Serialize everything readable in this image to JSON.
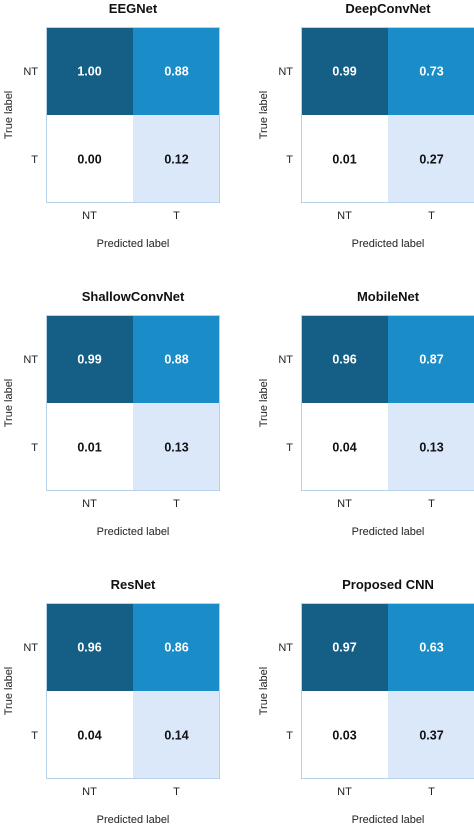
{
  "chart_data": [
    {
      "type": "heatmap",
      "title": "EEGNet",
      "xlabel": "Predicted label",
      "ylabel": "True label",
      "x_categories": [
        "NT",
        "T"
      ],
      "y_categories": [
        "NT",
        "T"
      ],
      "values": [
        [
          1.0,
          0.88
        ],
        [
          0.0,
          0.12
        ]
      ],
      "value_labels": [
        [
          "1.00",
          "0.88"
        ],
        [
          "0.00",
          "0.12"
        ]
      ]
    },
    {
      "type": "heatmap",
      "title": "DeepConvNet",
      "xlabel": "Predicted label",
      "ylabel": "True label",
      "x_categories": [
        "NT",
        "T"
      ],
      "y_categories": [
        "NT",
        "T"
      ],
      "values": [
        [
          0.99,
          0.73
        ],
        [
          0.01,
          0.27
        ]
      ],
      "value_labels": [
        [
          "0.99",
          "0.73"
        ],
        [
          "0.01",
          "0.27"
        ]
      ]
    },
    {
      "type": "heatmap",
      "title": "ShallowConvNet",
      "xlabel": "Predicted label",
      "ylabel": "True label",
      "x_categories": [
        "NT",
        "T"
      ],
      "y_categories": [
        "NT",
        "T"
      ],
      "values": [
        [
          0.99,
          0.88
        ],
        [
          0.01,
          0.13
        ]
      ],
      "value_labels": [
        [
          "0.99",
          "0.88"
        ],
        [
          "0.01",
          "0.13"
        ]
      ]
    },
    {
      "type": "heatmap",
      "title": "MobileNet",
      "xlabel": "Predicted label",
      "ylabel": "True label",
      "x_categories": [
        "NT",
        "T"
      ],
      "y_categories": [
        "NT",
        "T"
      ],
      "values": [
        [
          0.96,
          0.87
        ],
        [
          0.04,
          0.13
        ]
      ],
      "value_labels": [
        [
          "0.96",
          "0.87"
        ],
        [
          "0.04",
          "0.13"
        ]
      ]
    },
    {
      "type": "heatmap",
      "title": "ResNet",
      "xlabel": "Predicted label",
      "ylabel": "True label",
      "x_categories": [
        "NT",
        "T"
      ],
      "y_categories": [
        "NT",
        "T"
      ],
      "values": [
        [
          0.96,
          0.86
        ],
        [
          0.04,
          0.14
        ]
      ],
      "value_labels": [
        [
          "0.96",
          "0.86"
        ],
        [
          "0.04",
          "0.14"
        ]
      ]
    },
    {
      "type": "heatmap",
      "title": "Proposed CNN",
      "xlabel": "Predicted label",
      "ylabel": "True label",
      "x_categories": [
        "NT",
        "T"
      ],
      "y_categories": [
        "NT",
        "T"
      ],
      "values": [
        [
          0.97,
          0.63
        ],
        [
          0.03,
          0.37
        ]
      ],
      "value_labels": [
        [
          "0.97",
          "0.63"
        ],
        [
          "0.03",
          "0.37"
        ]
      ]
    }
  ],
  "colors": {
    "dark_blue": "#155f86",
    "mid_blue": "#1a8cc7",
    "light_blue": "#dae8f9",
    "white": "#ffffff",
    "frame": "#b9d2ea",
    "text_light": "#ffffff",
    "text_dark": "#111111"
  }
}
